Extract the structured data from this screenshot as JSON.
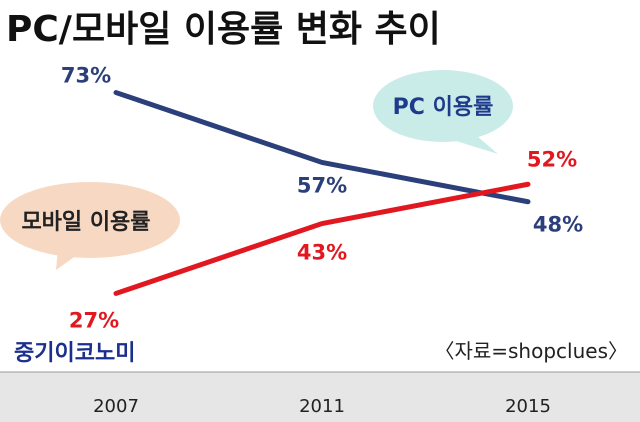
{
  "chart_data": {
    "type": "line",
    "title": "PC/모바일 이용률 변화 추이",
    "categories": [
      "2007",
      "2011",
      "2015"
    ],
    "ylim": [
      20,
      80
    ],
    "grid": false,
    "series": [
      {
        "name": "PC 이용률",
        "values": [
          73,
          57,
          48
        ],
        "labels": [
          "73%",
          "57%",
          "48%"
        ],
        "color": "#2b3f7a"
      },
      {
        "name": "모바일 이용률",
        "values": [
          27,
          43,
          52
        ],
        "labels": [
          "27%",
          "43%",
          "52%"
        ],
        "color": "#e1181f"
      }
    ],
    "source": "〈자료=shopclues〉",
    "brand": "중기이코노미"
  },
  "colors": {
    "pc_bubble": "#c9ece9",
    "mobile_bubble": "#f7d9c3",
    "pc_label_text": "#1f3a8a",
    "mobile_label_text": "#222222",
    "brand_text": "#1b2f8c",
    "axis_band": "#e6e6e6"
  }
}
